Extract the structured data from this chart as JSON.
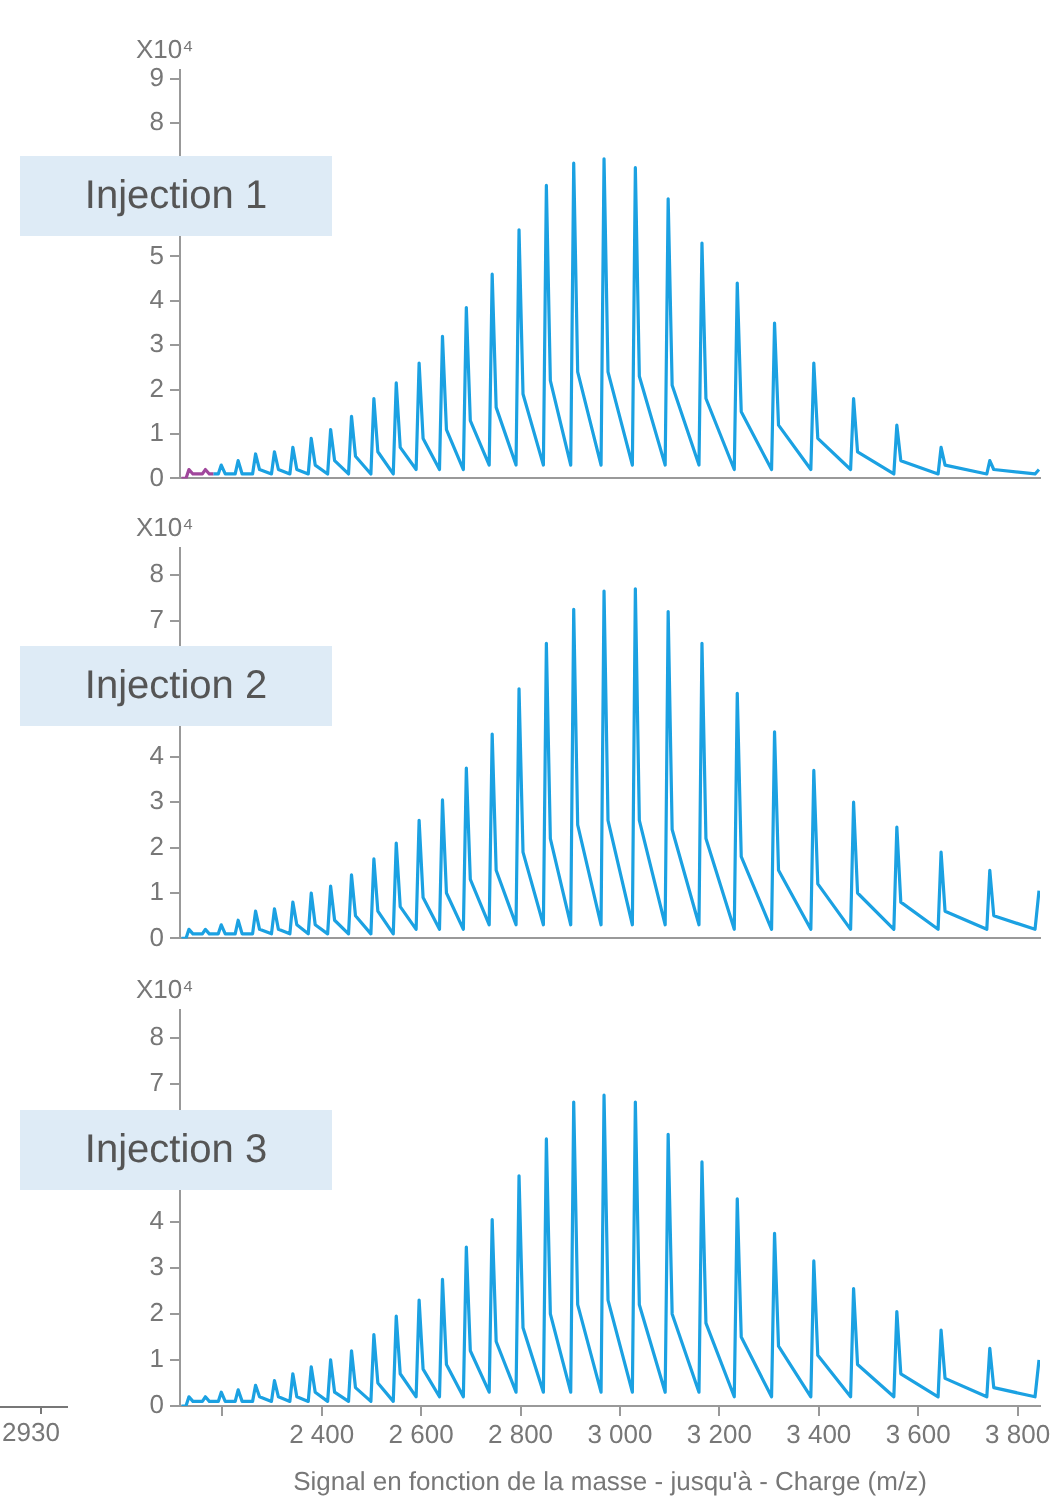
{
  "chart_data": [
    {
      "type": "line",
      "title": "Injection 1",
      "ylabel": "X10⁴",
      "xlim": [
        2115,
        3845
      ],
      "ylim": [
        0,
        9.2
      ],
      "yticks": [
        0,
        1,
        2,
        3,
        4,
        5,
        8,
        9
      ],
      "tick_labels": "y",
      "grid": false,
      "legend": false,
      "marker": "none",
      "line_style": "solid",
      "series": [
        {
          "color": "#a0479c",
          "x": [
            2118,
            2127,
            2133,
            2141,
            2160,
            2166,
            2174,
            2182
          ],
          "values": [
            0.0,
            0.0,
            0.2,
            0.1,
            0.1,
            0.2,
            0.1,
            0.1
          ]
        },
        {
          "color": "#1ba1e2",
          "x": [
            2182,
            2192,
            2198,
            2206,
            2226,
            2232,
            2240,
            2261,
            2267,
            2275,
            2299,
            2305,
            2313,
            2336,
            2342,
            2350,
            2373,
            2379,
            2387,
            2412,
            2418,
            2426,
            2454,
            2460,
            2468,
            2499,
            2505,
            2513,
            2544,
            2550,
            2558,
            2590,
            2596,
            2604,
            2637,
            2643,
            2651,
            2685,
            2691,
            2699,
            2737,
            2743,
            2751,
            2791,
            2797,
            2805,
            2846,
            2852,
            2860,
            2901,
            2907,
            2915,
            2962,
            2968,
            2976,
            3025,
            3031,
            3039,
            3091,
            3097,
            3105,
            3159,
            3165,
            3173,
            3230,
            3236,
            3244,
            3305,
            3311,
            3319,
            3384,
            3390,
            3398,
            3464,
            3470,
            3478,
            3551,
            3557,
            3565,
            3640,
            3646,
            3654,
            3738,
            3744,
            3752,
            3835,
            3843
          ],
          "values": [
            0.1,
            0.1,
            0.3,
            0.1,
            0.1,
            0.4,
            0.1,
            0.1,
            0.55,
            0.2,
            0.1,
            0.6,
            0.2,
            0.1,
            0.7,
            0.2,
            0.1,
            0.9,
            0.3,
            0.1,
            1.1,
            0.4,
            0.1,
            1.4,
            0.5,
            0.1,
            1.8,
            0.6,
            0.1,
            2.15,
            0.7,
            0.2,
            2.6,
            0.9,
            0.2,
            3.2,
            1.1,
            0.2,
            3.85,
            1.3,
            0.3,
            4.6,
            1.6,
            0.3,
            5.6,
            1.9,
            0.3,
            6.6,
            2.2,
            0.3,
            7.1,
            2.4,
            0.3,
            7.2,
            2.4,
            0.3,
            7.0,
            2.3,
            0.3,
            6.3,
            2.1,
            0.3,
            5.3,
            1.8,
            0.2,
            4.4,
            1.5,
            0.2,
            3.5,
            1.2,
            0.2,
            2.6,
            0.9,
            0.2,
            1.8,
            0.6,
            0.1,
            1.2,
            0.4,
            0.1,
            0.7,
            0.3,
            0.1,
            0.4,
            0.2,
            0.1,
            0.2
          ]
        }
      ]
    },
    {
      "type": "line",
      "title": "Injection 2",
      "ylabel": "X10⁴",
      "xlim": [
        2115,
        3845
      ],
      "ylim": [
        0,
        8.6
      ],
      "yticks": [
        0,
        1,
        2,
        3,
        4,
        7,
        8
      ],
      "tick_labels": "y",
      "grid": false,
      "legend": false,
      "marker": "none",
      "line_style": "solid",
      "x": [
        2118,
        2127,
        2133,
        2141,
        2160,
        2166,
        2174,
        2192,
        2198,
        2206,
        2226,
        2232,
        2240,
        2261,
        2267,
        2275,
        2299,
        2305,
        2313,
        2336,
        2342,
        2350,
        2373,
        2379,
        2387,
        2412,
        2418,
        2426,
        2454,
        2460,
        2468,
        2499,
        2505,
        2513,
        2544,
        2550,
        2558,
        2590,
        2596,
        2604,
        2637,
        2643,
        2651,
        2685,
        2691,
        2699,
        2737,
        2743,
        2751,
        2791,
        2797,
        2805,
        2846,
        2852,
        2860,
        2901,
        2907,
        2915,
        2962,
        2968,
        2976,
        3025,
        3031,
        3039,
        3091,
        3097,
        3105,
        3159,
        3165,
        3173,
        3230,
        3236,
        3244,
        3305,
        3311,
        3319,
        3384,
        3390,
        3398,
        3464,
        3470,
        3478,
        3551,
        3557,
        3565,
        3640,
        3646,
        3654,
        3738,
        3744,
        3752,
        3835,
        3843
      ],
      "series": [
        {
          "color": "#1ba1e2",
          "values": [
            0.0,
            0.0,
            0.2,
            0.1,
            0.1,
            0.2,
            0.1,
            0.1,
            0.3,
            0.1,
            0.1,
            0.4,
            0.1,
            0.1,
            0.6,
            0.2,
            0.1,
            0.65,
            0.2,
            0.1,
            0.8,
            0.3,
            0.1,
            1.0,
            0.3,
            0.1,
            1.15,
            0.4,
            0.1,
            1.4,
            0.5,
            0.1,
            1.75,
            0.6,
            0.1,
            2.1,
            0.7,
            0.2,
            2.6,
            0.9,
            0.2,
            3.05,
            1.0,
            0.2,
            3.75,
            1.3,
            0.3,
            4.5,
            1.5,
            0.3,
            5.5,
            1.9,
            0.3,
            6.5,
            2.2,
            0.3,
            7.25,
            2.5,
            0.3,
            7.65,
            2.6,
            0.3,
            7.7,
            2.6,
            0.3,
            7.2,
            2.4,
            0.3,
            6.5,
            2.2,
            0.2,
            5.4,
            1.8,
            0.2,
            4.55,
            1.5,
            0.2,
            3.7,
            1.2,
            0.2,
            3.0,
            1.0,
            0.2,
            2.45,
            0.8,
            0.2,
            1.9,
            0.6,
            0.2,
            1.5,
            0.5,
            0.2,
            1.05
          ]
        }
      ]
    },
    {
      "type": "line",
      "title": "Injection 3",
      "ylabel": "X10⁴",
      "xlabel": "Signal en fonction de la masse - jusqu'à - Charge (m/z)",
      "xlim": [
        2115,
        3845
      ],
      "xticks": [
        {
          "value": 2200,
          "label": null
        },
        {
          "value": 2400,
          "label": "2 400"
        },
        {
          "value": 2600,
          "label": "2 600"
        },
        {
          "value": 2800,
          "label": "2 800"
        },
        {
          "value": 3000,
          "label": "3 000"
        },
        {
          "value": 3200,
          "label": "3 200"
        },
        {
          "value": 3400,
          "label": "3 400"
        },
        {
          "value": 3600,
          "label": "3 600"
        },
        {
          "value": 3800,
          "label": "3 800"
        }
      ],
      "ylim": [
        0,
        8.6
      ],
      "yticks": [
        0,
        1,
        2,
        3,
        4,
        7,
        8
      ],
      "grid": false,
      "legend": false,
      "marker": "none",
      "line_style": "solid",
      "annotations": [
        "2930"
      ],
      "x": [
        2118,
        2127,
        2133,
        2141,
        2160,
        2166,
        2174,
        2192,
        2198,
        2206,
        2226,
        2232,
        2240,
        2261,
        2267,
        2275,
        2299,
        2305,
        2313,
        2336,
        2342,
        2350,
        2373,
        2379,
        2387,
        2412,
        2418,
        2426,
        2454,
        2460,
        2468,
        2499,
        2505,
        2513,
        2544,
        2550,
        2558,
        2590,
        2596,
        2604,
        2637,
        2643,
        2651,
        2685,
        2691,
        2699,
        2737,
        2743,
        2751,
        2791,
        2797,
        2805,
        2846,
        2852,
        2860,
        2901,
        2907,
        2915,
        2962,
        2968,
        2976,
        3025,
        3031,
        3039,
        3091,
        3097,
        3105,
        3159,
        3165,
        3173,
        3230,
        3236,
        3244,
        3305,
        3311,
        3319,
        3384,
        3390,
        3398,
        3464,
        3470,
        3478,
        3551,
        3557,
        3565,
        3640,
        3646,
        3654,
        3738,
        3744,
        3752,
        3835,
        3843
      ],
      "series": [
        {
          "color": "#1ba1e2",
          "values": [
            0.0,
            0.0,
            0.2,
            0.1,
            0.1,
            0.2,
            0.1,
            0.1,
            0.3,
            0.1,
            0.1,
            0.35,
            0.1,
            0.1,
            0.45,
            0.2,
            0.1,
            0.55,
            0.2,
            0.1,
            0.7,
            0.2,
            0.1,
            0.85,
            0.3,
            0.1,
            1.0,
            0.3,
            0.1,
            1.2,
            0.4,
            0.1,
            1.55,
            0.5,
            0.1,
            1.95,
            0.7,
            0.2,
            2.3,
            0.8,
            0.2,
            2.75,
            0.9,
            0.2,
            3.45,
            1.2,
            0.3,
            4.05,
            1.4,
            0.3,
            5.0,
            1.7,
            0.3,
            5.8,
            2.0,
            0.3,
            6.6,
            2.2,
            0.3,
            6.75,
            2.3,
            0.3,
            6.6,
            2.2,
            0.3,
            5.9,
            2.0,
            0.3,
            5.3,
            1.8,
            0.2,
            4.5,
            1.5,
            0.2,
            3.75,
            1.3,
            0.2,
            3.15,
            1.1,
            0.2,
            2.55,
            0.9,
            0.2,
            2.05,
            0.7,
            0.2,
            1.65,
            0.6,
            0.2,
            1.25,
            0.4,
            0.2,
            1.0
          ]
        }
      ]
    }
  ]
}
